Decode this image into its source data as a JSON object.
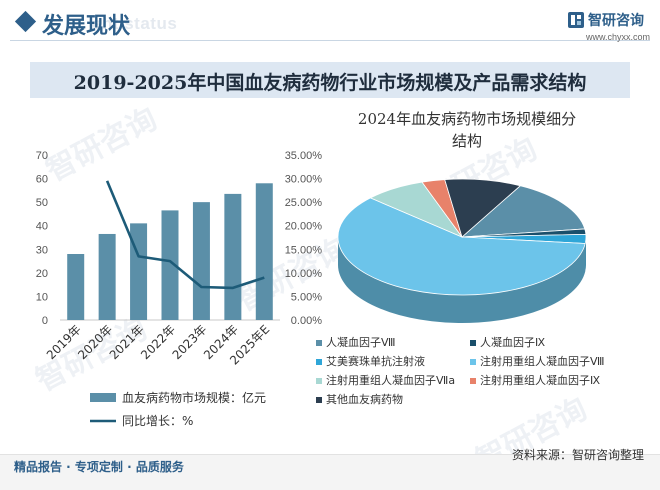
{
  "header": {
    "title": "发展现状",
    "subtitle_en": "ent status",
    "brand_name": "智研咨询",
    "brand_url": "www.chyxx.com"
  },
  "title_band": "2019-2025年中国血友病药物行业市场规模及产品需求结构",
  "watermark": "智研咨询",
  "footer": {
    "left": "精品报告 · 专项定制 · 品质服务",
    "source": "资料来源：智研咨询整理"
  },
  "colors": {
    "primary": "#2e5f8a",
    "bar": "#5b8fa8",
    "line": "#1d5b78",
    "band": "#dde7f2"
  },
  "chart_data": [
    {
      "type": "bar",
      "categories": [
        "2019年",
        "2020年",
        "2021年",
        "2022年",
        "2023年",
        "2024年",
        "2025年E"
      ],
      "series": [
        {
          "name": "血友病药物市场规模：亿元",
          "type": "bar",
          "axis": "left",
          "color": "#5b8fa8",
          "values": [
            28,
            36.5,
            41,
            46.5,
            50,
            53.5,
            58
          ]
        },
        {
          "name": "同比增长：%",
          "type": "line",
          "axis": "right",
          "color": "#1d5b78",
          "values": [
            null,
            29.5,
            13.5,
            12.5,
            7,
            6.8,
            9
          ]
        }
      ],
      "ylim": [
        0,
        70
      ],
      "yticks": [
        "0",
        "10",
        "20",
        "30",
        "40",
        "50",
        "60",
        "70"
      ],
      "y2lim": [
        0,
        35
      ],
      "y2ticks": [
        "0.00%",
        "5.00%",
        "10.00%",
        "15.00%",
        "20.00%",
        "25.00%",
        "30.00%",
        "35.00%"
      ],
      "legend_position": "bottom"
    },
    {
      "type": "pie",
      "title": "2024年血友病药物市场规模细分结构",
      "title_lines": [
        "2024年血友病药物市场规模细分",
        "结构"
      ],
      "labels": [
        "人凝血因子Ⅷ",
        "人凝血因子Ⅸ",
        "艾美赛珠单抗注射液",
        "注射用重组人凝血因子Ⅷ",
        "注射用重组人凝血因子Ⅶa",
        "注射用重组人凝血因子Ⅸ",
        "其他血友病药物"
      ],
      "values": [
        15,
        1.5,
        2.5,
        60,
        8,
        3,
        10
      ],
      "colors": [
        "#5b8fa8",
        "#1a4f6b",
        "#2fa6d8",
        "#6cc4ea",
        "#a8d8d3",
        "#e8826a",
        "#2c3e50"
      ],
      "legend_position": "bottom"
    }
  ]
}
